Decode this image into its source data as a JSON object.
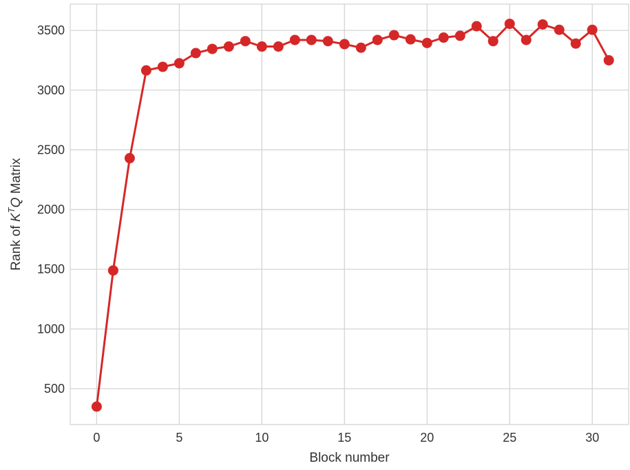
{
  "chart_data": {
    "type": "line",
    "xlabel": "Block number",
    "ylabel": {
      "prefix": "Rank of ",
      "k": "K",
      "sup": "T",
      "q": "Q",
      "suffix": " Matrix"
    },
    "xlim": [
      -1.6,
      32.2
    ],
    "ylim": [
      200,
      3720
    ],
    "x_ticks": [
      0,
      5,
      10,
      15,
      20,
      25,
      30
    ],
    "y_ticks": [
      500,
      1000,
      1500,
      2000,
      2500,
      3000,
      3500
    ],
    "grid": true,
    "color": "#d62728",
    "x": [
      0,
      1,
      2,
      3,
      4,
      5,
      6,
      7,
      8,
      9,
      10,
      11,
      12,
      13,
      14,
      15,
      16,
      17,
      18,
      19,
      20,
      21,
      22,
      23,
      24,
      25,
      26,
      27,
      28,
      29,
      30,
      31
    ],
    "y": [
      350,
      1490,
      2430,
      3165,
      3195,
      3225,
      3310,
      3345,
      3365,
      3410,
      3365,
      3365,
      3420,
      3420,
      3410,
      3385,
      3355,
      3420,
      3460,
      3425,
      3395,
      3440,
      3455,
      3535,
      3410,
      3555,
      3420,
      3550,
      3505,
      3390,
      3505,
      3250
    ]
  }
}
